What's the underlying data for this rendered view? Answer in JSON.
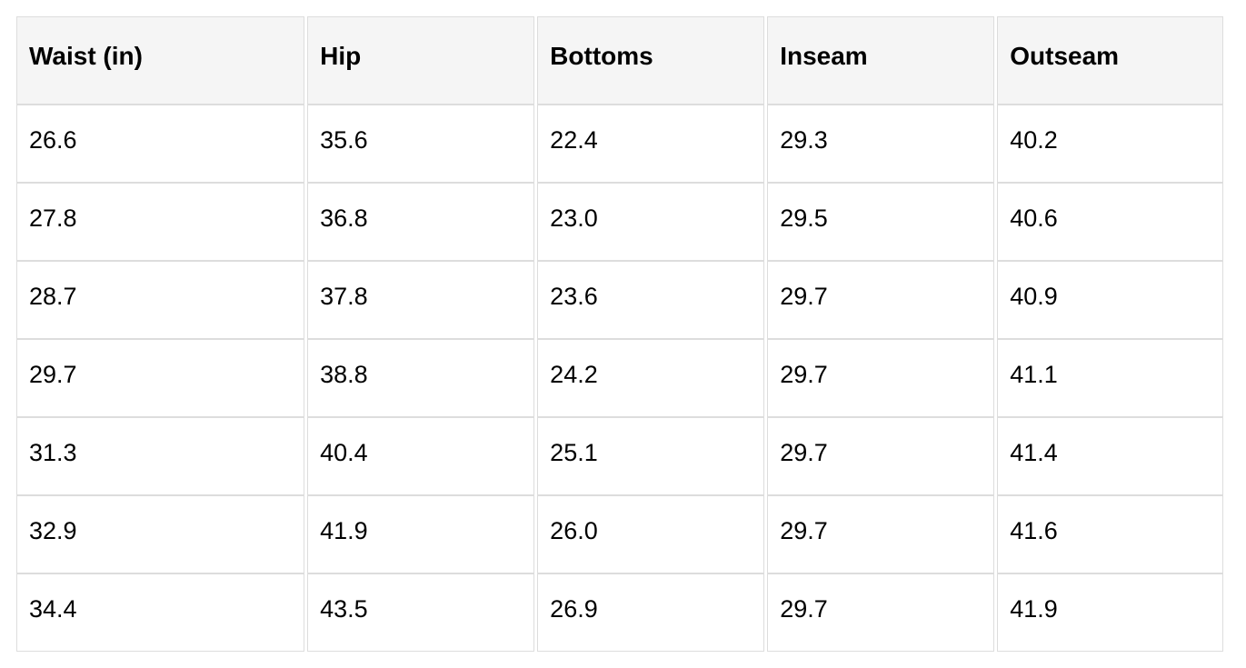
{
  "chart_data": {
    "type": "table",
    "columns": [
      "Waist (in)",
      "Hip",
      "Bottoms",
      "Inseam",
      "Outseam"
    ],
    "rows": [
      [
        "26.6",
        "35.6",
        "22.4",
        "29.3",
        "40.2"
      ],
      [
        "27.8",
        "36.8",
        "23.0",
        "29.5",
        "40.6"
      ],
      [
        "28.7",
        "37.8",
        "23.6",
        "29.7",
        "40.9"
      ],
      [
        "29.7",
        "38.8",
        "24.2",
        "29.7",
        "41.1"
      ],
      [
        "31.3",
        "40.4",
        "25.1",
        "29.7",
        "41.4"
      ],
      [
        "32.9",
        "41.9",
        "26.0",
        "29.7",
        "41.6"
      ],
      [
        "34.4",
        "43.5",
        "26.9",
        "29.7",
        "41.9"
      ]
    ],
    "column_widths_pct": [
      24.1,
      19.0,
      19.0,
      19.0,
      18.9
    ]
  },
  "colors": {
    "page_bg": "#ffffff",
    "header_bg": "#f5f5f5",
    "border": "#dddddd",
    "text": "#000000"
  }
}
